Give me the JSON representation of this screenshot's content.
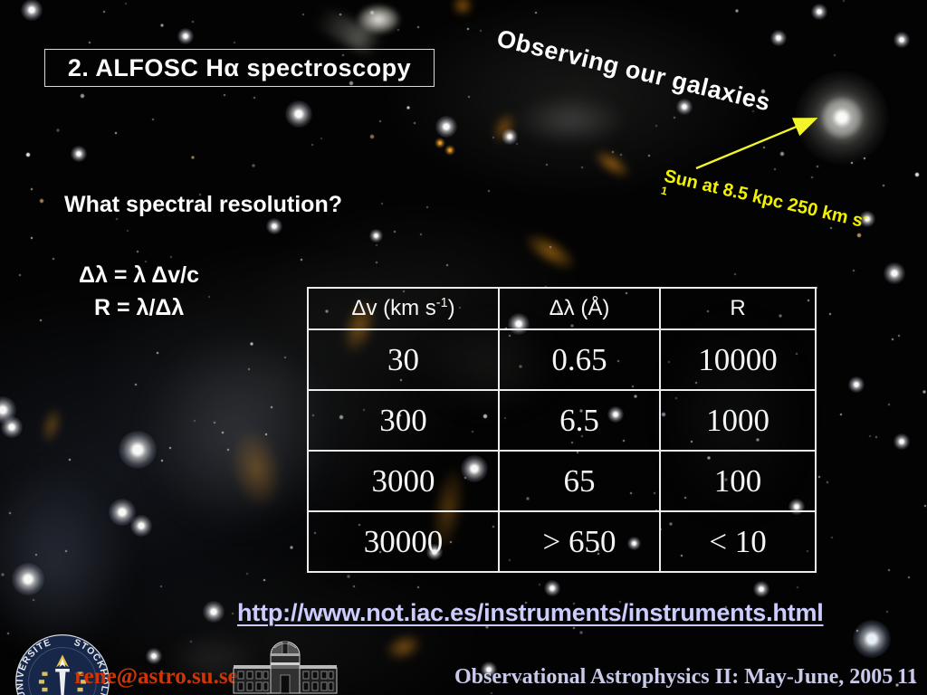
{
  "slide": {
    "title_box": "2. ALFOSC Hα spectroscopy",
    "rotated_heading": "Observing our galaxies",
    "sun_label": {
      "main": "Sun  at 8.5 kpc  250 km s",
      "sup_line1": "-",
      "sup_line2": "1"
    },
    "question": "What spectral resolution?",
    "formula_line1": "Δλ = λ Δv/c",
    "formula_line2": "R = λ/Δλ",
    "table": {
      "headers": [
        {
          "pre": "Δv (km s",
          "sup": "-1",
          "post": ")"
        },
        {
          "pre": "Δλ (Å)",
          "sup": "",
          "post": ""
        },
        {
          "pre": "R",
          "sup": "",
          "post": ""
        }
      ],
      "rows": [
        [
          "30",
          "0.65",
          "10000"
        ],
        [
          "300",
          "6.5",
          "1000"
        ],
        [
          "3000",
          "65",
          "100"
        ],
        [
          "30000",
          "> 650",
          "< 10"
        ]
      ]
    },
    "link": "http://www.not.iac.es/instruments/instruments.html",
    "footer": {
      "email": "rene@astro.su.se",
      "course": "Observational Astrophysics II: May-June, 2005",
      "page_number": "11",
      "seal_text_left": "UNIVERSITET",
      "seal_text_right": "STOCKHOLMS"
    },
    "icons": {
      "galaxy": "spiral-galaxy-image",
      "arrow": "yellow-annotation-arrow",
      "seal": "stockholm-university-seal",
      "observatory": "observatory-building-drawing"
    },
    "colors": {
      "link": "#ccccff",
      "email": "#d03505",
      "accent_yellow": "#f2f200",
      "footer_text": "#c9c9e9",
      "table_border": "#ececec"
    }
  }
}
